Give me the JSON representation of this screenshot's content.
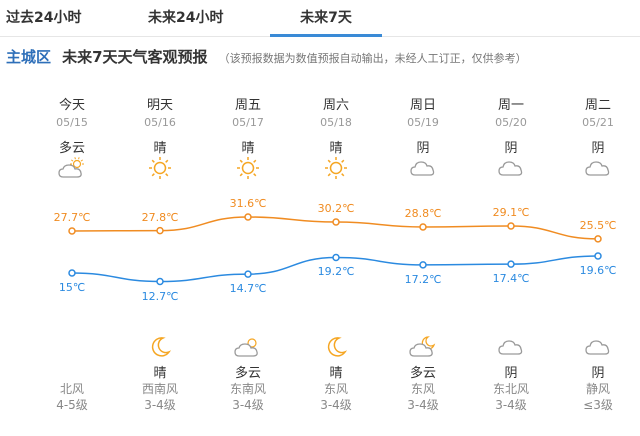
{
  "tabs": [
    {
      "label": "过去24小时",
      "active": false
    },
    {
      "label": "未来24小时",
      "active": false
    },
    {
      "label": "未来7天",
      "active": true
    }
  ],
  "header": {
    "city": "主城区",
    "title": "未来7天天气客观预报",
    "note": "（该预报数据为数值预报自动输出，未经人工订正，仅供参考）"
  },
  "days": [
    {
      "day": "今天",
      "date": "05/15",
      "day_weather": "多云",
      "day_icon": "cloudy-icon",
      "high": "27.7℃",
      "low": "15℃",
      "night_weather": "",
      "night_icon": "",
      "wind_dir": "北风",
      "wind_level": "4-5级"
    },
    {
      "day": "明天",
      "date": "05/16",
      "day_weather": "晴",
      "day_icon": "sun-icon",
      "high": "27.8℃",
      "low": "12.7℃",
      "night_weather": "晴",
      "night_icon": "moon-icon",
      "wind_dir": "西南风",
      "wind_level": "3-4级"
    },
    {
      "day": "周五",
      "date": "05/17",
      "day_weather": "晴",
      "day_icon": "sun-icon",
      "high": "31.6℃",
      "low": "14.7℃",
      "night_weather": "多云",
      "night_icon": "cloud-sun-icon",
      "wind_dir": "东南风",
      "wind_level": "3-4级"
    },
    {
      "day": "周六",
      "date": "05/18",
      "day_weather": "晴",
      "day_icon": "sun-icon",
      "high": "30.2℃",
      "low": "19.2℃",
      "night_weather": "晴",
      "night_icon": "moon-icon",
      "wind_dir": "东风",
      "wind_level": "3-4级"
    },
    {
      "day": "周日",
      "date": "05/19",
      "day_weather": "阴",
      "day_icon": "overcast-icon",
      "high": "28.8℃",
      "low": "17.2℃",
      "night_weather": "多云",
      "night_icon": "cloud-moon-icon",
      "wind_dir": "东风",
      "wind_level": "3-4级"
    },
    {
      "day": "周一",
      "date": "05/20",
      "day_weather": "阴",
      "day_icon": "overcast-icon",
      "high": "29.1℃",
      "low": "17.4℃",
      "night_weather": "阴",
      "night_icon": "overcast-icon",
      "wind_dir": "东北风",
      "wind_level": "3-4级"
    },
    {
      "day": "周二",
      "date": "05/21",
      "day_weather": "阴",
      "day_icon": "overcast-icon",
      "high": "25.5℃",
      "low": "19.6℃",
      "night_weather": "阴",
      "night_icon": "overcast-icon",
      "wind_dir": "静风",
      "wind_level": "≤3级"
    }
  ],
  "chart_data": {
    "type": "line",
    "categories": [
      "05/15",
      "05/16",
      "05/17",
      "05/18",
      "05/19",
      "05/20",
      "05/21"
    ],
    "series": [
      {
        "values": [
          27.7,
          27.8,
          31.6,
          30.2,
          28.8,
          29.1,
          25.5
        ]
      },
      {
        "values": [
          15,
          12.7,
          14.7,
          19.2,
          17.2,
          17.4,
          19.6
        ]
      }
    ]
  },
  "colors": {
    "high": "#f08c22",
    "low": "#2b8ae0",
    "accent": "#3a8ad6",
    "sun": "#f5a623",
    "moon": "#f5a623",
    "cloud": "#9a9a9a"
  }
}
